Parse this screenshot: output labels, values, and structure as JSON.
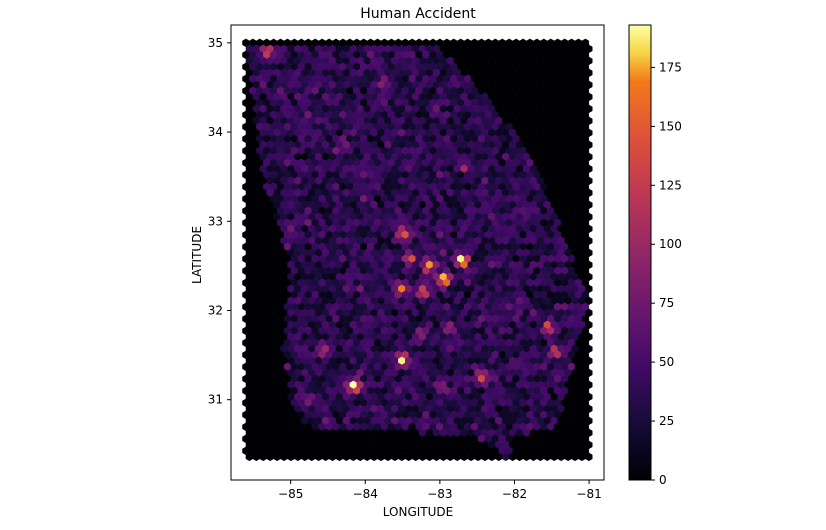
{
  "chart_data": {
    "type": "heatmap",
    "subtype": "hexbin",
    "title": "Human Accident",
    "xlabel": "LONGITUDE",
    "ylabel": "LATITUDE",
    "xlim": [
      -85.8,
      -80.8
    ],
    "ylim": [
      30.1,
      35.2
    ],
    "x_ticks": [
      -85,
      -84,
      -83,
      -82,
      -81
    ],
    "x_tick_labels": [
      "−85",
      "−84",
      "−83",
      "−82",
      "−81"
    ],
    "y_ticks": [
      31,
      32,
      33,
      34,
      35
    ],
    "y_tick_labels": [
      "31",
      "32",
      "33",
      "34",
      "35"
    ],
    "colormap": "inferno",
    "colorbar": {
      "min": 0,
      "max": 193,
      "ticks": [
        0,
        25,
        50,
        75,
        100,
        125,
        150,
        175
      ],
      "tick_labels": [
        "0",
        "25",
        "50",
        "75",
        "100",
        "125",
        "150",
        "175"
      ]
    },
    "grid": false,
    "hexbin_extent": {
      "x": [
        -85.6,
        -81.0
      ],
      "y": [
        30.35,
        35.0
      ]
    },
    "hotspots": [
      {
        "lon": -84.15,
        "lat": 31.15,
        "count": 193
      },
      {
        "lon": -82.95,
        "lat": 32.35,
        "count": 190
      },
      {
        "lon": -82.7,
        "lat": 32.55,
        "count": 175
      },
      {
        "lon": -83.5,
        "lat": 31.45,
        "count": 160
      },
      {
        "lon": -83.15,
        "lat": 32.5,
        "count": 150
      },
      {
        "lon": -83.5,
        "lat": 32.25,
        "count": 140
      },
      {
        "lon": -83.5,
        "lat": 32.85,
        "count": 130
      },
      {
        "lon": -83.2,
        "lat": 32.2,
        "count": 120
      },
      {
        "lon": -83.4,
        "lat": 32.6,
        "count": 110
      },
      {
        "lon": -82.45,
        "lat": 31.25,
        "count": 130
      },
      {
        "lon": -81.55,
        "lat": 31.8,
        "count": 115
      },
      {
        "lon": -81.45,
        "lat": 31.55,
        "count": 110
      },
      {
        "lon": -85.3,
        "lat": 34.9,
        "count": 105
      },
      {
        "lon": -85.35,
        "lat": 31.25,
        "count": 90
      },
      {
        "lon": -83.25,
        "lat": 31.75,
        "count": 85
      },
      {
        "lon": -82.9,
        "lat": 31.8,
        "count": 80
      },
      {
        "lon": -83.0,
        "lat": 31.15,
        "count": 75
      },
      {
        "lon": -84.55,
        "lat": 31.55,
        "count": 70
      },
      {
        "lon": -84.75,
        "lat": 31.0,
        "count": 65
      },
      {
        "lon": -82.65,
        "lat": 33.6,
        "count": 60
      },
      {
        "lon": -83.75,
        "lat": 34.55,
        "count": 60
      },
      {
        "lon": -84.35,
        "lat": 33.8,
        "count": 60
      }
    ]
  }
}
